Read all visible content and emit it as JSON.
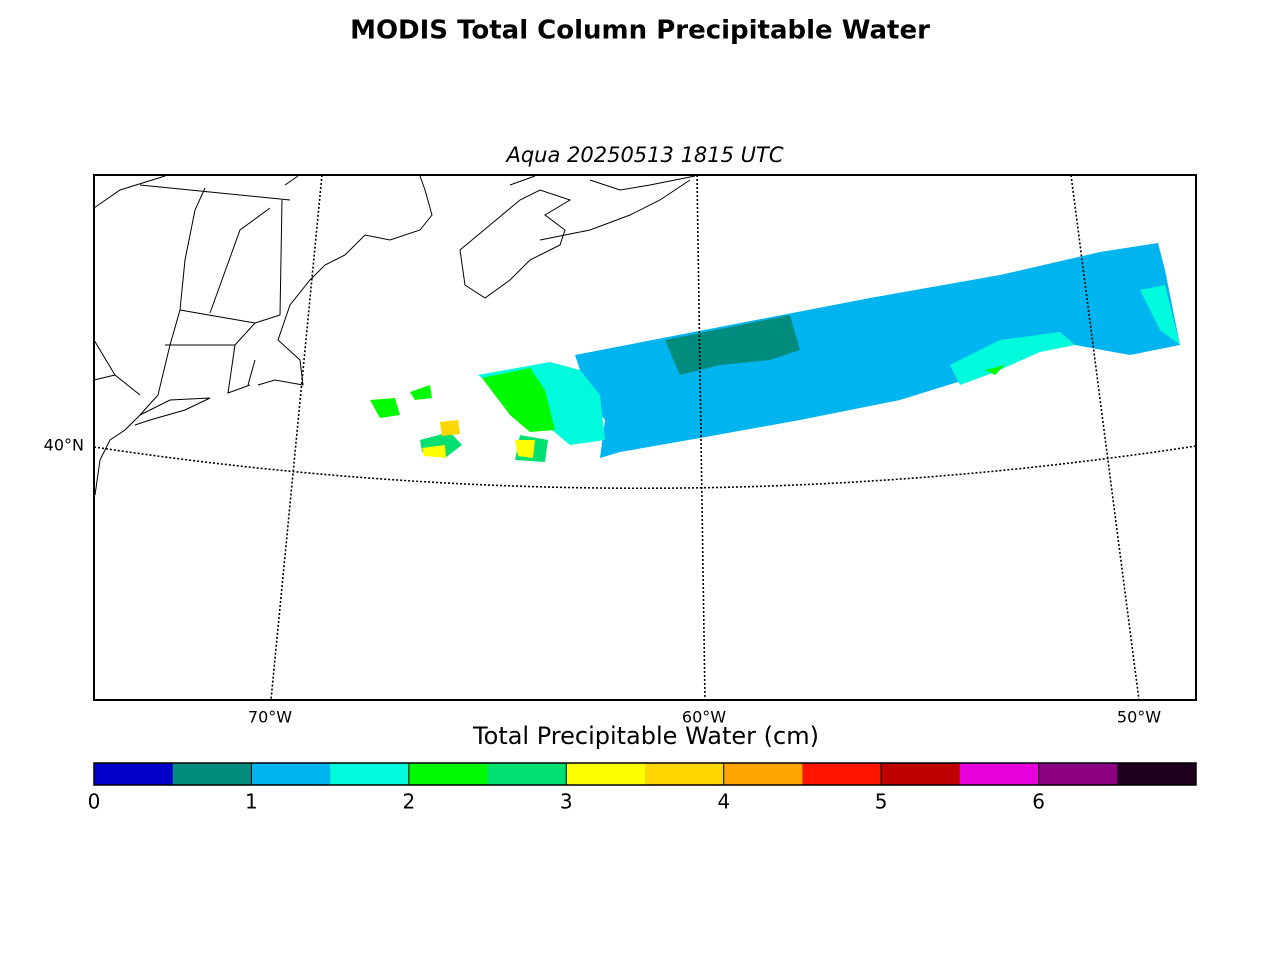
{
  "title": "MODIS Total Column Precipitable Water",
  "map": {
    "subtitle": "Aqua 20250513 1815 UTC",
    "lat_labels": [
      "40°N"
    ],
    "lon_labels": [
      "70°W",
      "60°W",
      "50°W"
    ]
  },
  "colorbar": {
    "label": "Total Precipitable Water (cm)",
    "range": [
      0,
      7
    ],
    "ticks": [
      0,
      1,
      2,
      3,
      4,
      5,
      6
    ],
    "colors": [
      "#0000c8",
      "#008c7c",
      "#00b4f0",
      "#00fadc",
      "#00fa00",
      "#00e070",
      "#ffff00",
      "#ffd700",
      "#ffa500",
      "#ff1400",
      "#be0000",
      "#e600dc",
      "#8c0082",
      "#1e001e"
    ]
  }
}
